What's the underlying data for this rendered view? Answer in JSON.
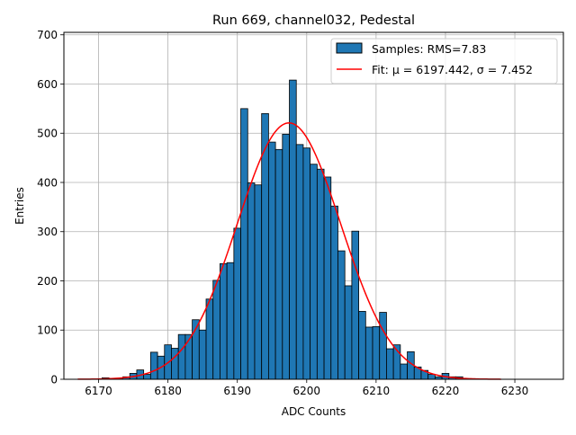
{
  "chart_data": {
    "type": "bar",
    "title": "Run 669, channel032, Pedestal",
    "xlabel": "ADC Counts",
    "ylabel": "Entries",
    "xlim": [
      6165,
      6237
    ],
    "ylim": [
      0,
      705
    ],
    "xticks": [
      6170,
      6180,
      6190,
      6200,
      6210,
      6220,
      6230
    ],
    "yticks": [
      0,
      100,
      200,
      300,
      400,
      500,
      600,
      700
    ],
    "grid": true,
    "legend_position": "top-right",
    "bin_width": 1,
    "series": [
      {
        "name": "Samples: RMS=7.83",
        "kind": "histogram",
        "color": "#1f77b4",
        "edge_color": "#000000",
        "bin_centers": [
          6170,
          6171,
          6172,
          6173,
          6174,
          6175,
          6176,
          6177,
          6178,
          6179,
          6180,
          6181,
          6182,
          6183,
          6184,
          6185,
          6186,
          6187,
          6188,
          6189,
          6190,
          6191,
          6192,
          6193,
          6194,
          6195,
          6196,
          6197,
          6198,
          6199,
          6200,
          6201,
          6202,
          6203,
          6204,
          6205,
          6206,
          6207,
          6208,
          6209,
          6210,
          6211,
          6212,
          6213,
          6214,
          6215,
          6216,
          6217,
          6218,
          6219,
          6220,
          6221,
          6222
        ],
        "counts": [
          0,
          3,
          1,
          2,
          5,
          12,
          19,
          10,
          55,
          47,
          70,
          63,
          91,
          91,
          121,
          100,
          163,
          201,
          235,
          237,
          307,
          550,
          399,
          395,
          540,
          482,
          467,
          498,
          608,
          477,
          470,
          437,
          427,
          411,
          352,
          261,
          190,
          301,
          138,
          106,
          107,
          136,
          62,
          70,
          31,
          56,
          25,
          18,
          10,
          5,
          12,
          5,
          5
        ]
      },
      {
        "name": "Fit: μ = 6197.442, σ = 7.452",
        "kind": "gaussian",
        "color": "#ff0000",
        "mu": 6197.442,
        "sigma": 7.452,
        "amplitude": 521,
        "x_range": [
          6167,
          6228
        ]
      }
    ]
  }
}
